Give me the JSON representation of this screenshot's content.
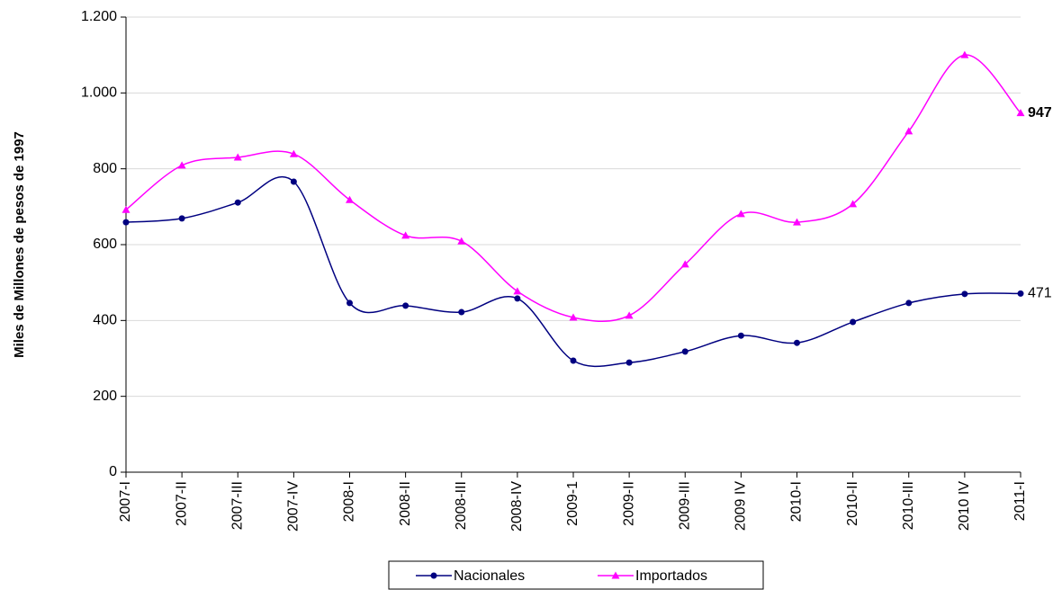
{
  "chart_data": {
    "type": "line",
    "y_label": "Miles de Millones de pesos de 1997",
    "categories": [
      "2007-I",
      "2007-II",
      "2007-III",
      "2007-IV",
      "2008-I",
      "2008-II",
      "2008-III",
      "2008-IV",
      "2009-1",
      "2009-II",
      "2009-III",
      "2009 IV",
      "2010-I",
      "2010-II",
      "2010-III",
      "2010 IV",
      "2011-I"
    ],
    "series": [
      {
        "name": "Nacionales",
        "color": "#000080",
        "marker": "circle",
        "data_labels": "last",
        "values": [
          659,
          669,
          711,
          766,
          446,
          439,
          422,
          458,
          294,
          289,
          318,
          360,
          341,
          396,
          446,
          470,
          471
        ]
      },
      {
        "name": "Importados",
        "color": "#ff00ff",
        "marker": "triangle",
        "data_labels": "last",
        "values": [
          692,
          809,
          830,
          839,
          718,
          624,
          609,
          477,
          408,
          413,
          548,
          681,
          659,
          707,
          899,
          1100,
          947
        ]
      }
    ],
    "ylim": [
      0,
      1200
    ],
    "yticks": [
      0,
      200,
      400,
      600,
      800,
      {
        "value": 1000,
        "label": "1.000"
      },
      {
        "value": 1200,
        "label": "1.200"
      }
    ],
    "grid": true,
    "smooth": true,
    "legend": "bottom"
  }
}
